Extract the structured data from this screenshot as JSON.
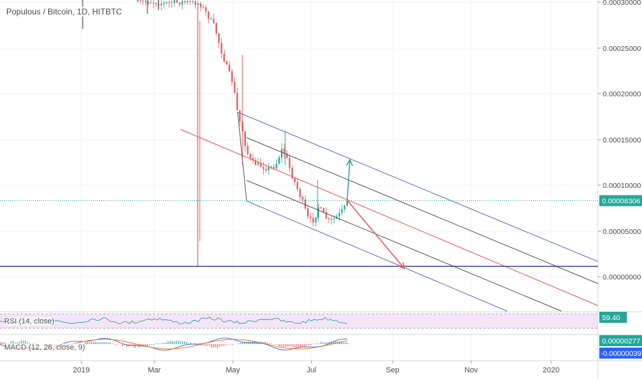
{
  "chart_data": {
    "type": "candlestick",
    "title": "Populous / Bitcoin, 1D, HITBTC",
    "y_ticks": [
      "0.00030000",
      "0.00025000",
      "0.00020000",
      "0.00015000",
      "0.00010000",
      "0.00005000",
      "0.00000000"
    ],
    "y_range": [
      -4e-05,
      0.0003
    ],
    "x_ticks": [
      "2019",
      "Mar",
      "May",
      "Jul",
      "Sep",
      "Nov",
      "2020"
    ],
    "last_price_label": "0.00008306",
    "last_price": 8.306e-05,
    "support_level": 9e-06,
    "colors": {
      "up": "#26a69a",
      "down": "#ef5350",
      "channel_outer": "#5c6bc0",
      "channel_inner": "#555555",
      "median": "#ef5350",
      "support": "#1a237e",
      "arrow_up": "#26a69a",
      "arrow_down": "#ef5350",
      "price_badge": "#26a69a",
      "rsi_fill": "#f3e5f5",
      "rsi_line": "#26a69a"
    },
    "rsi": {
      "label": "RSI (14, close)",
      "value_label": "59.40",
      "value": 59.4
    },
    "macd": {
      "label": "MACD (12, 26, close, 9)",
      "value_labels": [
        "0.00000277",
        "-0.00000039"
      ],
      "values": [
        2.77e-06,
        -3.9e-07
      ]
    }
  }
}
